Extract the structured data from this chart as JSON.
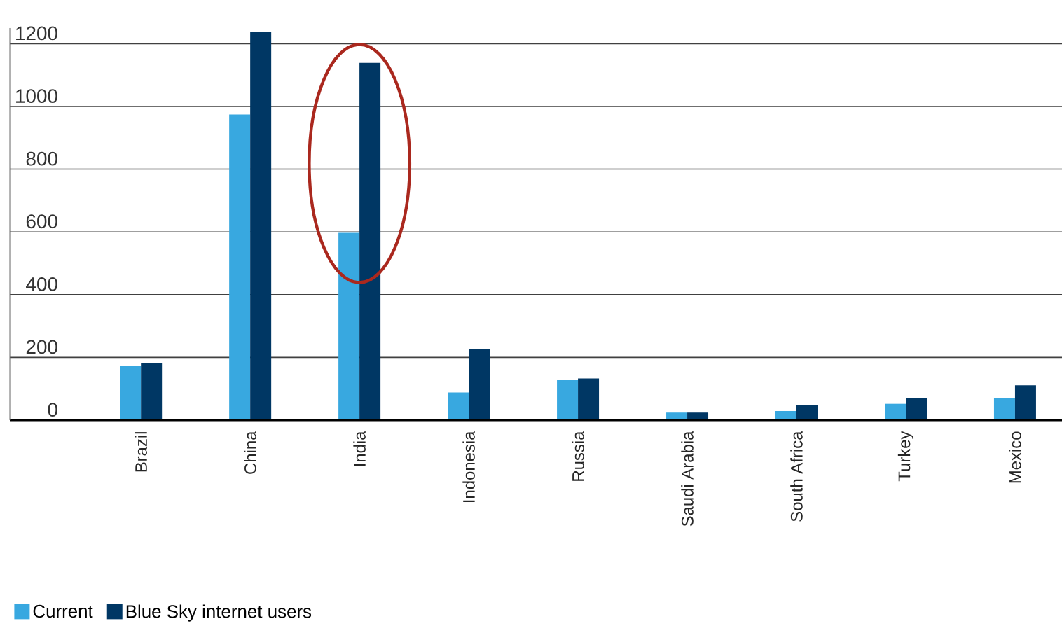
{
  "chart_data": {
    "type": "bar",
    "categories": [
      "Brazil",
      "China",
      "India",
      "Indonesia",
      "Russia",
      "Saudi Arabia",
      "South Africa",
      "Turkey",
      "Mexico"
    ],
    "series": [
      {
        "name": "Current",
        "color": "#38a8e0",
        "values": [
          172,
          974,
          597,
          88,
          129,
          24,
          29,
          52,
          70
        ]
      },
      {
        "name": "Blue Sky internet users",
        "color": "#003764",
        "values": [
          181,
          1237,
          1139,
          226,
          133,
          24,
          47,
          70,
          111
        ]
      }
    ],
    "ylim": [
      0,
      1250
    ],
    "yticks": [
      0,
      200,
      400,
      600,
      800,
      1000,
      1200
    ],
    "grid": "y",
    "legend": "bottom left"
  }
}
